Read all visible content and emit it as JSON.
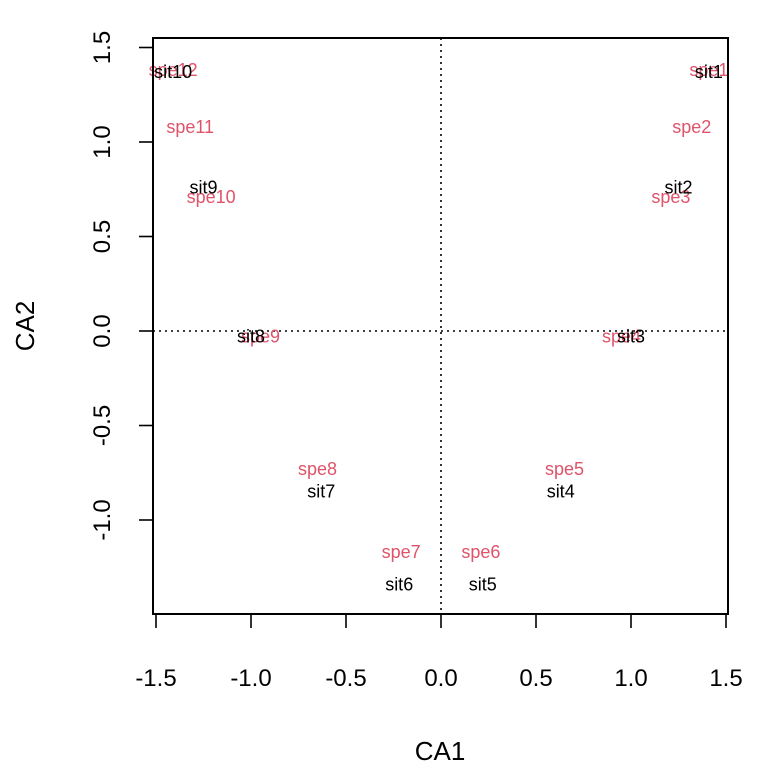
{
  "chart_data": {
    "type": "scatter",
    "xlabel": "CA1",
    "ylabel": "CA2",
    "xlim": [
      -1.5,
      1.5
    ],
    "ylim": [
      -1.5,
      1.5
    ],
    "x_ticks": [
      "-1.5",
      "-1.0",
      "-0.5",
      "0.0",
      "0.5",
      "1.0",
      "1.5"
    ],
    "y_ticks": [
      "-1.0",
      "-0.5",
      "0.0",
      "0.5",
      "1.0",
      "1.5"
    ],
    "grid": false,
    "reference_lines": {
      "x": 0,
      "y": 0,
      "style": "dotted"
    },
    "colors": {
      "sites": "#000000",
      "species": "#DF536B"
    },
    "species": [
      {
        "label": "spe1",
        "x": 1.41,
        "y": 1.38
      },
      {
        "label": "spe2",
        "x": 1.32,
        "y": 1.08
      },
      {
        "label": "spe3",
        "x": 1.21,
        "y": 0.71
      },
      {
        "label": "spe4",
        "x": 0.95,
        "y": -0.03
      },
      {
        "label": "spe5",
        "x": 0.65,
        "y": -0.73
      },
      {
        "label": "spe6",
        "x": 0.21,
        "y": -1.17
      },
      {
        "label": "spe7",
        "x": -0.21,
        "y": -1.17
      },
      {
        "label": "spe8",
        "x": -0.65,
        "y": -0.73
      },
      {
        "label": "spe9",
        "x": -0.95,
        "y": -0.03
      },
      {
        "label": "spe10",
        "x": -1.21,
        "y": 0.71
      },
      {
        "label": "spe11",
        "x": -1.32,
        "y": 1.08
      },
      {
        "label": "spe12",
        "x": -1.41,
        "y": 1.38
      }
    ],
    "sites": [
      {
        "label": "sit1",
        "x": 1.41,
        "y": 1.37
      },
      {
        "label": "sit2",
        "x": 1.25,
        "y": 0.76
      },
      {
        "label": "sit3",
        "x": 1.0,
        "y": -0.03
      },
      {
        "label": "sit4",
        "x": 0.63,
        "y": -0.85
      },
      {
        "label": "sit5",
        "x": 0.22,
        "y": -1.34
      },
      {
        "label": "sit6",
        "x": -0.22,
        "y": -1.34
      },
      {
        "label": "sit7",
        "x": -0.63,
        "y": -0.85
      },
      {
        "label": "sit8",
        "x": -1.0,
        "y": -0.03
      },
      {
        "label": "sit9",
        "x": -1.25,
        "y": 0.76
      },
      {
        "label": "sit10",
        "x": -1.41,
        "y": 1.37
      }
    ]
  }
}
